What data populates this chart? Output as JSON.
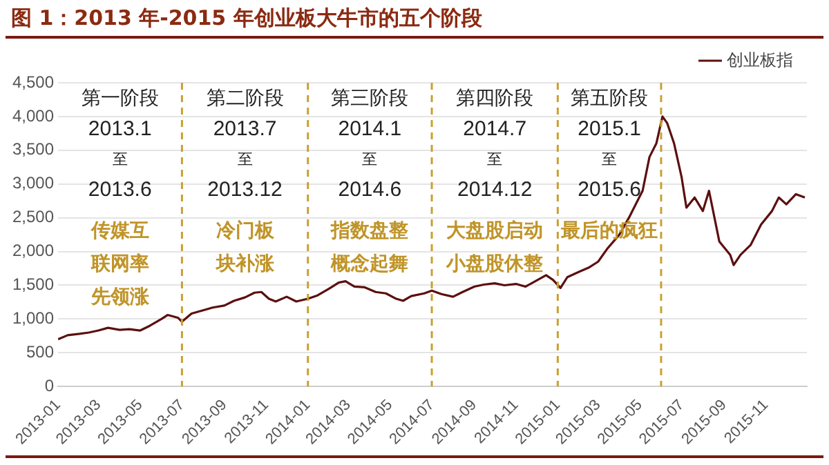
{
  "chart_data": {
    "type": "line",
    "title": "图 1：2013 年-2015 年创业板大牛市的五个阶段",
    "annotations": [
      "第一阶段",
      "2013.1",
      "至",
      "2013.6",
      "传媒互联网率先领涨",
      "第二阶段",
      "2013.7",
      "至",
      "2013.12",
      "冷门板块补涨",
      "第三阶段",
      "2014.1",
      "至",
      "2014.6",
      "指数盘整概念起舞",
      "第四阶段",
      "2014.7",
      "至",
      "2014.12",
      "大盘股启动小盘股休整",
      "第五阶段",
      "2015.1",
      "至",
      "2015.6",
      "最后的疯狂"
    ],
    "x": [
      "2013-01-01",
      "2013-01-15",
      "2013-02-01",
      "2013-02-15",
      "2013-03-01",
      "2013-03-15",
      "2013-04-01",
      "2013-04-15",
      "2013-05-01",
      "2013-05-15",
      "2013-06-01",
      "2013-06-10",
      "2013-06-25",
      "2013-07-01",
      "2013-07-15",
      "2013-08-01",
      "2013-08-15",
      "2013-09-01",
      "2013-09-15",
      "2013-10-01",
      "2013-10-15",
      "2013-10-25",
      "2013-11-05",
      "2013-11-15",
      "2013-12-01",
      "2013-12-15",
      "2014-01-01",
      "2014-01-15",
      "2014-02-01",
      "2014-02-15",
      "2014-02-25",
      "2014-03-10",
      "2014-03-25",
      "2014-04-10",
      "2014-04-25",
      "2014-05-10",
      "2014-05-20",
      "2014-06-01",
      "2014-06-20",
      "2014-07-01",
      "2014-07-15",
      "2014-08-01",
      "2014-08-15",
      "2014-09-01",
      "2014-09-15",
      "2014-10-01",
      "2014-10-15",
      "2014-11-01",
      "2014-11-15",
      "2014-12-01",
      "2014-12-15",
      "2014-12-25",
      "2015-01-05",
      "2015-01-15",
      "2015-02-01",
      "2015-02-15",
      "2015-03-01",
      "2015-03-15",
      "2015-04-01",
      "2015-04-15",
      "2015-04-25",
      "2015-05-05",
      "2015-05-15",
      "2015-05-25",
      "2015-06-03",
      "2015-06-10",
      "2015-06-20",
      "2015-07-01",
      "2015-07-08",
      "2015-07-20",
      "2015-08-01",
      "2015-08-10",
      "2015-08-25",
      "2015-09-10",
      "2015-09-15",
      "2015-09-25",
      "2015-10-10",
      "2015-10-25",
      "2015-11-10",
      "2015-11-20",
      "2015-12-01",
      "2015-12-15",
      "2015-12-28"
    ],
    "series": [
      {
        "name": "创业板指",
        "color": "#5c0f0f",
        "values": [
          700,
          760,
          780,
          800,
          830,
          870,
          840,
          850,
          830,
          900,
          1000,
          1060,
          1020,
          960,
          1080,
          1130,
          1170,
          1200,
          1270,
          1320,
          1390,
          1400,
          1300,
          1260,
          1330,
          1260,
          1300,
          1350,
          1450,
          1540,
          1560,
          1480,
          1470,
          1400,
          1380,
          1300,
          1270,
          1340,
          1380,
          1420,
          1370,
          1330,
          1400,
          1480,
          1510,
          1530,
          1500,
          1520,
          1480,
          1570,
          1650,
          1580,
          1460,
          1620,
          1700,
          1760,
          1850,
          2050,
          2250,
          2500,
          2700,
          2900,
          3400,
          3600,
          4000,
          3900,
          3600,
          3100,
          2650,
          2800,
          2600,
          2900,
          2150,
          1950,
          1800,
          1950,
          2100,
          2400,
          2600,
          2800,
          2700,
          2850,
          2800
        ]
      }
    ],
    "xlim": [
      "2013-01-01",
      "2015-12-31"
    ],
    "xticks": [
      "2013-01",
      "2013-03",
      "2013-05",
      "2013-07",
      "2013-09",
      "2013-11",
      "2014-01",
      "2014-03",
      "2014-05",
      "2014-07",
      "2014-09",
      "2014-11",
      "2015-01",
      "2015-03",
      "2015-05",
      "2015-07",
      "2015-09",
      "2015-11"
    ],
    "ylim": [
      0,
      4500
    ],
    "yticks": [
      0,
      {
        "value": 500,
        "label": "500"
      },
      {
        "value": 1000,
        "label": "1,000"
      },
      {
        "value": 1500,
        "label": "1,500"
      },
      {
        "value": 2000,
        "label": "2,000"
      },
      {
        "value": 2500,
        "label": "2,500"
      },
      {
        "value": 3000,
        "label": "3,000"
      },
      {
        "value": 3500,
        "label": "3,500"
      },
      {
        "value": 4000,
        "label": "4,000"
      },
      {
        "value": 4500,
        "label": "4,500"
      }
    ],
    "ref_lines": [
      {
        "axis": "x",
        "value": "2013-07",
        "color": "#c9a030",
        "line_style": "dashed"
      },
      {
        "axis": "x",
        "value": "2014-01",
        "color": "#c9a030",
        "line_style": "dashed"
      },
      {
        "axis": "x",
        "value": "2014-07",
        "color": "#c9a030",
        "line_style": "dashed"
      },
      {
        "axis": "x",
        "value": "2015-01",
        "color": "#c9a030",
        "line_style": "dashed"
      },
      {
        "axis": "x",
        "value": "2015-06",
        "color": "#c9a030",
        "line_style": "dashed"
      }
    ],
    "grid": "y",
    "legend": "top right",
    "marker": "none",
    "line_style": "solid"
  }
}
